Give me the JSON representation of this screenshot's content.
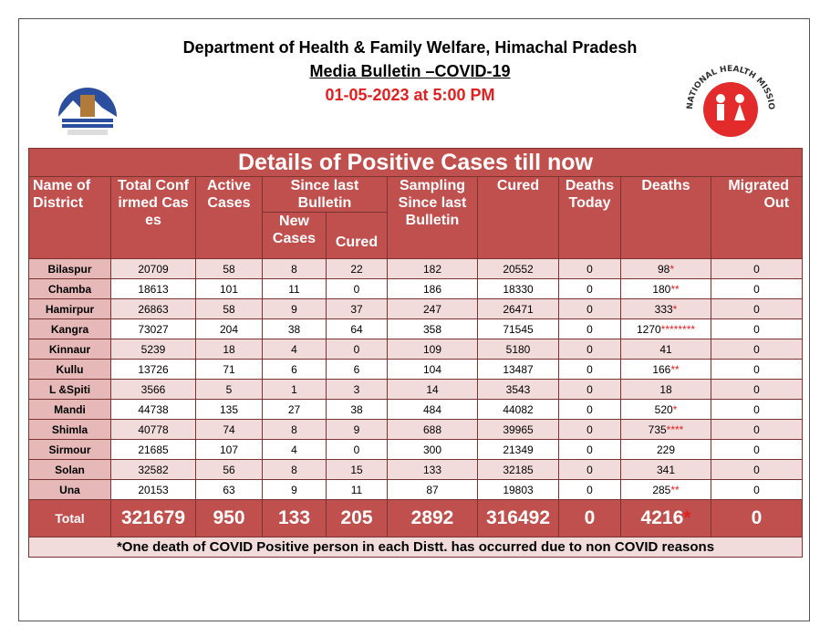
{
  "header": {
    "title": "Department of Health & Family Welfare, Himachal Pradesh",
    "subtitle": "Media Bulletin –COVID-19",
    "date": "01-05-2023 at 5:00 PM"
  },
  "logos": {
    "right_text": "NATIONAL HEALTH MISSION"
  },
  "table": {
    "title": "Details of Positive Cases till now",
    "columns": {
      "district": "Name of District",
      "total": "Total Confirmed Cases",
      "active": "Active Cases",
      "since_last": "Since last Bulletin",
      "new": "New Cases",
      "cured_new": "Cured",
      "sampling": "Sampling Since last Bulletin",
      "cured": "Cured",
      "deaths_today": "Deaths Today",
      "deaths": "Deaths",
      "migrated": "Migrated Out"
    },
    "rows": [
      {
        "district": "Bilaspur",
        "total": 20709,
        "active": 58,
        "new": 8,
        "cured_new": 22,
        "sampling": 182,
        "cured": 20552,
        "deaths_today": 0,
        "deaths": 98,
        "deaths_mark": "*",
        "migrated": 0
      },
      {
        "district": "Chamba",
        "total": 18613,
        "active": 101,
        "new": 11,
        "cured_new": 0,
        "sampling": 186,
        "cured": 18330,
        "deaths_today": 0,
        "deaths": 180,
        "deaths_mark": "**",
        "migrated": 0
      },
      {
        "district": "Hamirpur",
        "total": 26863,
        "active": 58,
        "new": 9,
        "cured_new": 37,
        "sampling": 247,
        "cured": 26471,
        "deaths_today": 0,
        "deaths": 333,
        "deaths_mark": "*",
        "migrated": 0
      },
      {
        "district": "Kangra",
        "total": 73027,
        "active": 204,
        "new": 38,
        "cured_new": 64,
        "sampling": 358,
        "cured": 71545,
        "deaths_today": 0,
        "deaths": 1270,
        "deaths_mark": "********",
        "migrated": 0
      },
      {
        "district": "Kinnaur",
        "total": 5239,
        "active": 18,
        "new": 4,
        "cured_new": 0,
        "sampling": 109,
        "cured": 5180,
        "deaths_today": 0,
        "deaths": 41,
        "migrated": 0
      },
      {
        "district": "Kullu",
        "total": 13726,
        "active": 71,
        "new": 6,
        "cured_new": 6,
        "sampling": 104,
        "cured": 13487,
        "deaths_today": 0,
        "deaths": 166,
        "deaths_mark": "**",
        "migrated": 0
      },
      {
        "district": "L &Spiti",
        "total": 3566,
        "active": 5,
        "new": 1,
        "cured_new": 3,
        "sampling": 14,
        "cured": 3543,
        "deaths_today": 0,
        "deaths": 18,
        "migrated": 0
      },
      {
        "district": "Mandi",
        "total": 44738,
        "active": 135,
        "new": 27,
        "cured_new": 38,
        "sampling": 484,
        "cured": 44082,
        "deaths_today": 0,
        "deaths": 520,
        "deaths_mark": "*",
        "migrated": 0
      },
      {
        "district": "Shimla",
        "total": 40778,
        "active": 74,
        "new": 8,
        "cured_new": 9,
        "sampling": 688,
        "cured": 39965,
        "deaths_today": 0,
        "deaths": 735,
        "deaths_mark": "****",
        "migrated": 0
      },
      {
        "district": "Sirmour",
        "total": 21685,
        "active": 107,
        "new": 4,
        "cured_new": 0,
        "sampling": 300,
        "cured": 21349,
        "deaths_today": 0,
        "deaths": 229,
        "migrated": 0
      },
      {
        "district": "Solan",
        "total": 32582,
        "active": 56,
        "new": 8,
        "cured_new": 15,
        "sampling": 133,
        "cured": 32185,
        "deaths_today": 0,
        "deaths": 341,
        "migrated": 0
      },
      {
        "district": "Una",
        "total": 20153,
        "active": 63,
        "new": 9,
        "cured_new": 11,
        "sampling": 87,
        "cured": 19803,
        "deaths_today": 0,
        "deaths": 285,
        "deaths_mark": "**",
        "migrated": 0
      }
    ],
    "total_row": {
      "district": "Total",
      "total": 321679,
      "active": 950,
      "new": 133,
      "cured_new": 205,
      "sampling": 2892,
      "cured": 316492,
      "deaths_today": 0,
      "deaths": 4216,
      "deaths_mark": "*",
      "migrated": 0
    },
    "footnote": "*One death of COVID Positive person in each Distt. has occurred due to non COVID reasons"
  }
}
